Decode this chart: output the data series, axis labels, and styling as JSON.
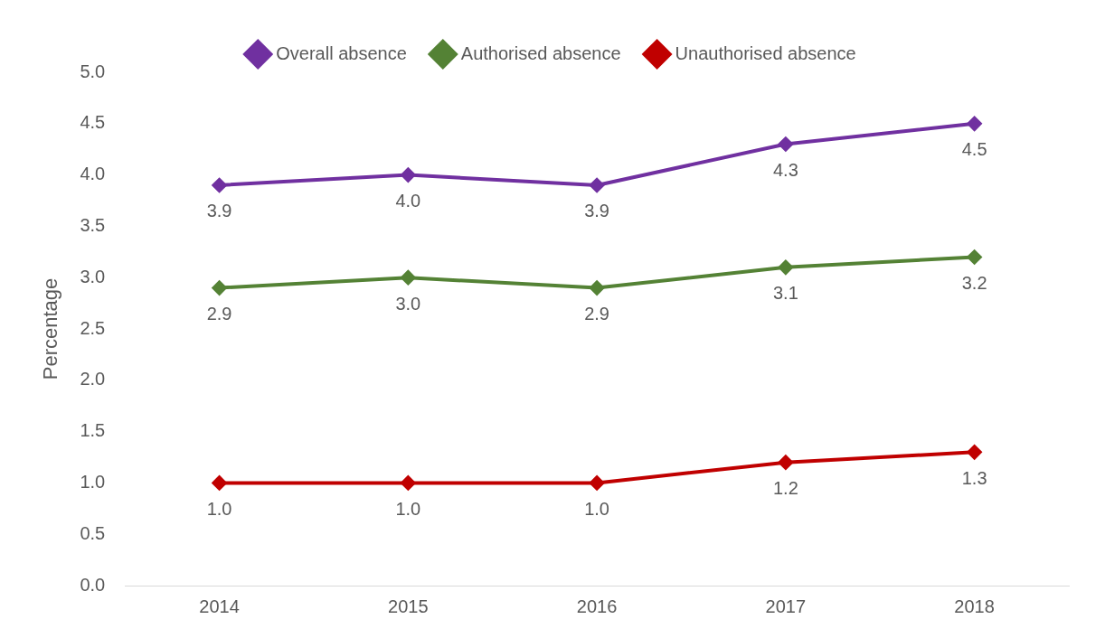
{
  "chart_data": {
    "type": "line",
    "ylabel": "Percentage",
    "categories": [
      "2014",
      "2015",
      "2016",
      "2017",
      "2018"
    ],
    "series": [
      {
        "name": "Overall absence",
        "color": "#7030a0",
        "values": [
          3.9,
          4.0,
          3.9,
          4.3,
          4.5
        ],
        "value_labels": [
          "3.9",
          "4.0",
          "3.9",
          "4.3",
          "4.5"
        ]
      },
      {
        "name": "Authorised absence",
        "color": "#548235",
        "values": [
          2.9,
          3.0,
          2.9,
          3.1,
          3.2
        ],
        "value_labels": [
          "2.9",
          "3.0",
          "2.9",
          "3.1",
          "3.2"
        ]
      },
      {
        "name": "Unauthorised absence",
        "color": "#c00000",
        "values": [
          1.0,
          1.0,
          1.0,
          1.2,
          1.3
        ],
        "value_labels": [
          "1.0",
          "1.0",
          "1.0",
          "1.2",
          "1.3"
        ]
      }
    ],
    "ylim": [
      0,
      5
    ],
    "yticks": [
      {
        "value": 0,
        "label": "0.0"
      },
      {
        "value": 0.5,
        "label": "0.5"
      },
      {
        "value": 1,
        "label": "1.0"
      },
      {
        "value": 1.5,
        "label": "1.5"
      },
      {
        "value": 2,
        "label": "2.0"
      },
      {
        "value": 2.5,
        "label": "2.5"
      },
      {
        "value": 3,
        "label": "3.0"
      },
      {
        "value": 3.5,
        "label": "3.5"
      },
      {
        "value": 4,
        "label": "4.0"
      },
      {
        "value": 4.5,
        "label": "4.5"
      },
      {
        "value": 5,
        "label": "5.0"
      }
    ],
    "grid": false,
    "legend": "top",
    "marker": "diamond",
    "line_style": "solid"
  }
}
